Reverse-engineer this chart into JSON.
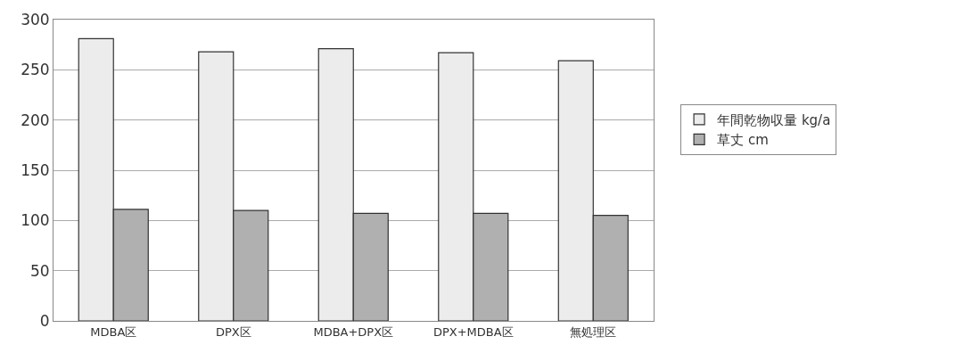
{
  "chart_data": {
    "type": "bar",
    "categories": [
      "MDBA区",
      "DPX区",
      "MDBA+DPX区",
      "DPX+MDBA区",
      "無処理区"
    ],
    "series": [
      {
        "name": "年間乾物収量 kg/a",
        "color": "#ececec",
        "values": [
          281,
          268,
          271,
          267,
          259
        ]
      },
      {
        "name": "草丈 cm",
        "color": "#b0b0b0",
        "values": [
          111,
          110,
          107,
          107,
          105
        ]
      }
    ],
    "ylim": [
      0,
      300
    ],
    "yticks": [
      0,
      50,
      100,
      150,
      200,
      250,
      300
    ],
    "grid": "y",
    "legend": "right"
  }
}
